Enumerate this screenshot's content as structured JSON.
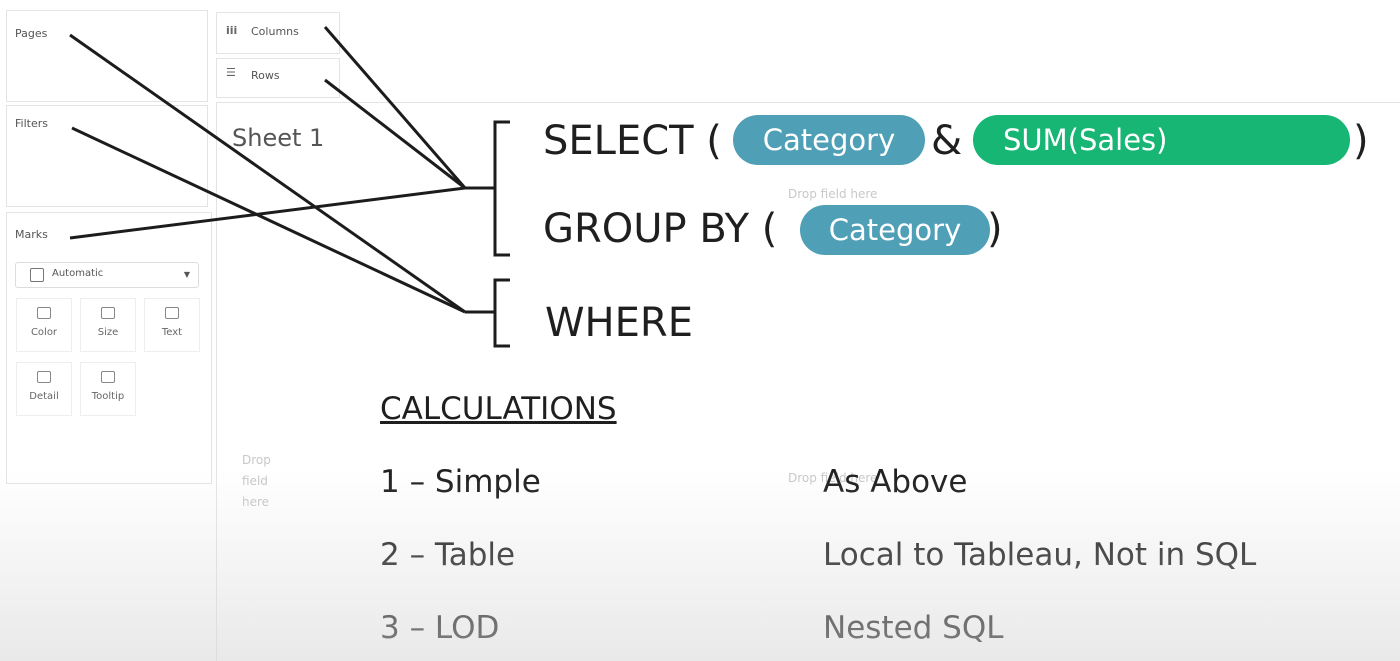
{
  "workspace": {
    "pages": "Pages",
    "filters": "Filters",
    "marks": {
      "title": "Marks",
      "mark_type": "Automatic",
      "buttons": [
        "Color",
        "Size",
        "Text",
        "Detail",
        "Tooltip"
      ]
    },
    "columns": "Columns",
    "rows": "Rows",
    "sheet_title": "Sheet 1",
    "drop_hints": [
      "Drop field here",
      "Drop field here",
      "Drop field here"
    ]
  },
  "sql": {
    "select": "SELECT (",
    "select_pills": [
      "Category",
      "SUM(Sales)"
    ],
    "and": "&",
    "close": ")",
    "group_by": "GROUP BY (",
    "group_pill": "Category",
    "where": "WHERE"
  },
  "calculations": {
    "title": "CALCULATIONS",
    "rows": [
      [
        "1 – Simple",
        "As Above"
      ],
      [
        "2 – Table",
        "Local to Tableau, Not in SQL"
      ],
      [
        "3 – LOD",
        "Nested SQL"
      ]
    ]
  }
}
